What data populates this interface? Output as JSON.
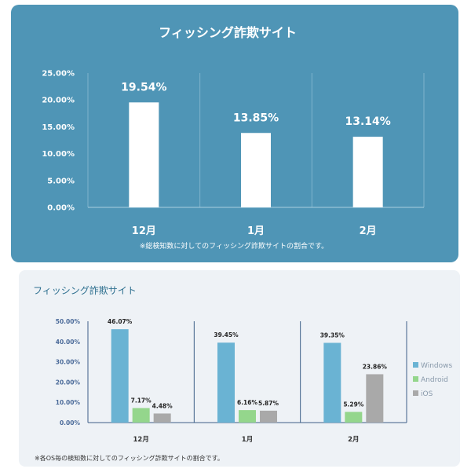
{
  "chart_data": [
    {
      "type": "bar",
      "title": "フィッシング詐欺サイト",
      "categories": [
        "12月",
        "1月",
        "2月"
      ],
      "values": [
        19.54,
        13.85,
        13.14
      ],
      "value_labels": [
        "19.54%",
        "13.85%",
        "13.14%"
      ],
      "y_ticks": [
        "0.00%",
        "5.00%",
        "10.00%",
        "15.00%",
        "20.00%",
        "25.00%"
      ],
      "ylim": [
        0,
        25
      ],
      "note": "※総検知数に対してのフィッシング詐欺サイトの割合です。",
      "colors": {
        "background": "#4f95b6",
        "bar": "#ffffff"
      }
    },
    {
      "type": "bar",
      "title": "フィッシング詐欺サイト",
      "categories": [
        "12月",
        "1月",
        "2月"
      ],
      "series": [
        {
          "name": "Windows",
          "values": [
            46.07,
            39.45,
            39.35
          ],
          "labels": [
            "46.07%",
            "39.45%",
            "39.35%"
          ],
          "color": "#6ab3d3"
        },
        {
          "name": "Android",
          "values": [
            7.17,
            6.16,
            5.29
          ],
          "labels": [
            "7.17%",
            "6.16%",
            "5.29%"
          ],
          "color": "#94d68c"
        },
        {
          "name": "iOS",
          "values": [
            4.48,
            5.87,
            23.86
          ],
          "labels": [
            "4.48%",
            "5.87%",
            "23.86%"
          ],
          "color": "#a9a9a9"
        }
      ],
      "y_ticks": [
        "0.00%",
        "10.00%",
        "20.00%",
        "30.00%",
        "40.00%",
        "50.00%"
      ],
      "ylim": [
        0,
        50
      ],
      "legend_position": "right",
      "note": "※各OS毎の検知数に対してのフィッシング詐欺サイトの割合です。"
    }
  ]
}
